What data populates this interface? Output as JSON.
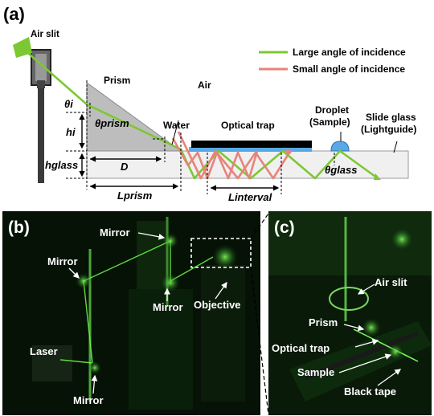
{
  "panels": {
    "a": "(a)",
    "b": "(b)",
    "c": "(c)"
  },
  "diagram": {
    "air_slit": "Air slit",
    "prism": "Prism",
    "air": "Air",
    "water": "Water",
    "optical_trap": "Optical trap",
    "droplet_line1": "Droplet",
    "droplet_line2": "(Sample)",
    "slide_line1": "Slide glass",
    "slide_line2": "(Lightguide)",
    "theta_i": "θi",
    "theta_prism": "θprism",
    "theta_glass": "θglass",
    "h_i": "hi",
    "h_glass": "hglass",
    "D": "D",
    "L_prism": "Lprism",
    "L_interval": "Linterval"
  },
  "legend": {
    "large": "Large angle of incidence",
    "small": "Small angle of incidence",
    "large_color": "#7cc832",
    "small_color": "#e8837c"
  },
  "photo_b": {
    "mirror_top": "Mirror",
    "mirror_left": "Mirror",
    "mirror_mid": "Mirror",
    "mirror_bottom": "Mirror",
    "objective": "Objective",
    "laser": "Laser"
  },
  "photo_c": {
    "air_slit": "Air slit",
    "prism": "Prism",
    "optical_trap": "Optical trap",
    "sample": "Sample",
    "black_tape": "Black tape"
  }
}
